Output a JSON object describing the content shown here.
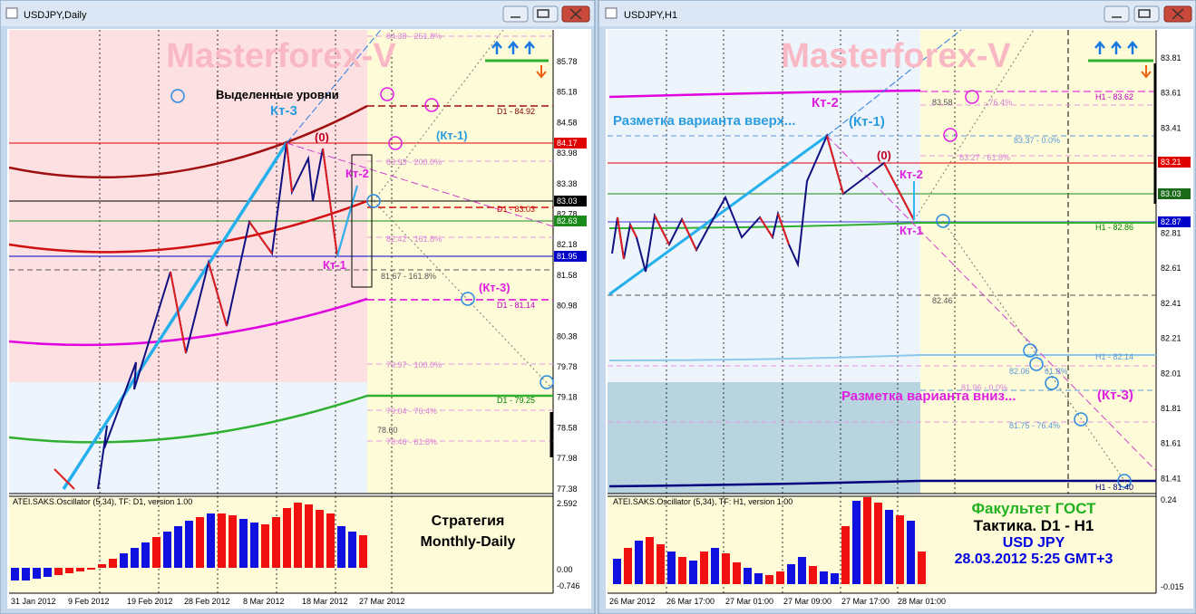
{
  "windows": [
    {
      "title": "USDJPY,Daily",
      "price_labels": [
        "85.78",
        "85.18",
        "84.58",
        "83.98",
        "83.38",
        "82.78",
        "82.18",
        "81.58",
        "80.98",
        "80.38",
        "79.78",
        "79.18",
        "78.58",
        "77.98",
        "77.38"
      ],
      "highlight_labels": [
        "84.17",
        "83.03",
        "82.63",
        "81.95"
      ],
      "time_labels": [
        "31 Jan 2012",
        "9 Feb 2012",
        "19 Feb 2012",
        "28 Feb 2012",
        "8 Mar 2012",
        "18 Mar 2012",
        "27 Mar 2012"
      ],
      "watermark": "Masterforex-V",
      "annotations": [
        "Выделенные уровни",
        "Кт-3",
        "(0)",
        "(Кт-1)",
        "Кт-2",
        "Кт-1",
        "(Кт-3)"
      ],
      "level_labels": [
        "84.38 - 261.8%",
        "D1 - 84.92",
        "83.93 - 200.0%",
        "D1 - 83.03",
        "82.42 - 161.8%",
        "81.67 - 161.8%",
        "D1 - 81.14",
        "79.97 - 100.0%",
        "D1 - 79.25",
        "79.04 - 76.4%",
        "78.60",
        "78.46 - 61.8%"
      ],
      "oscillator": {
        "name": "ATEI.SAKS.Oscillator (5,34), TF: D1, version 1.00",
        "labels": [
          "2.592",
          "0.00",
          "-0.746"
        ]
      },
      "notes": [
        "Стратегия",
        "Monthly-Daily"
      ]
    },
    {
      "title": "USDJPY,H1",
      "price_labels": [
        "83.81",
        "83.61",
        "83.41",
        "82.81",
        "82.61",
        "82.41",
        "82.21",
        "82.01",
        "81.81",
        "81.61",
        "81.41"
      ],
      "highlight_labels": [
        "83.21",
        "83.03",
        "82.87"
      ],
      "time_labels": [
        "26 Mar 2012",
        "26 Mar 17:00",
        "27 Mar 01:00",
        "27 Mar 09:00",
        "27 Mar 17:00",
        "28 Mar 01:00"
      ],
      "watermark": "Masterforex-V",
      "annotations": [
        "Кт-2",
        "Разметка варианта вверх...",
        "(Кт-1)",
        "(0)",
        "Кт-2",
        "Кт-1",
        "Разметка варианта вниз...",
        "(Кт-3)"
      ],
      "level_labels": [
        "H1 - 83.62",
        "83.58",
        "- 76.4%",
        "83.37 - 0.0%",
        "83.27 - 61.8%",
        "H1 - 82.86",
        "82.46",
        "H1 - 82.14",
        "82.06",
        "61.8%",
        "81.96 - 0.0%",
        "81.75 - 76.4%",
        "H1 - 81.40"
      ],
      "oscillator": {
        "name": "ATEI.SAKS.Oscillator (5,34), TF: H1, version 1.00",
        "labels": [
          "0.24",
          "-0.015"
        ]
      },
      "notes": [
        "Факультет ГОСТ",
        "Тактика. D1 - H1",
        "USD JPY",
        "28.03.2012 5:25 GMT+3"
      ]
    }
  ]
}
